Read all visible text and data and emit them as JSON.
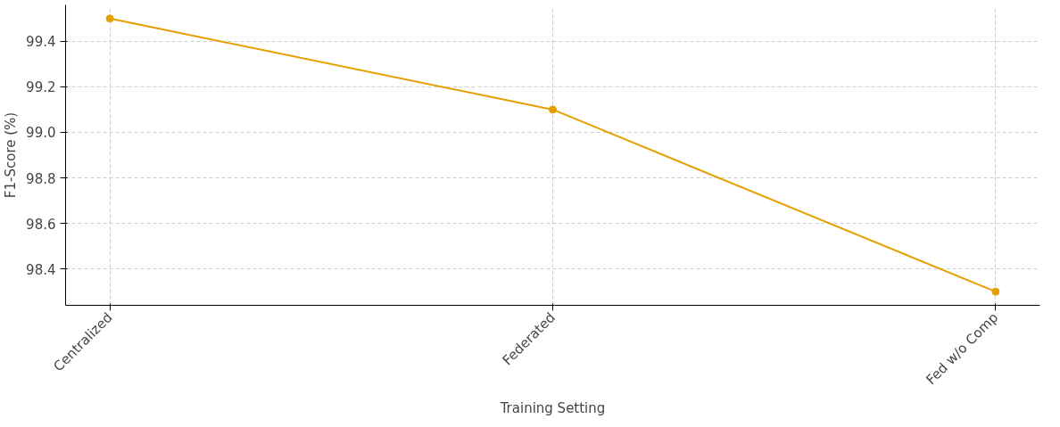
{
  "chart_data": {
    "type": "line",
    "xlabel": "Training Setting",
    "ylabel": "F1-Score (%)",
    "categories": [
      "Centralized",
      "Federated",
      "Fed w/o Comp"
    ],
    "series": [
      {
        "color": "#e69f00",
        "values": [
          99.5,
          99.1,
          98.3
        ]
      }
    ],
    "ylim": [
      98.24,
      99.56
    ],
    "yticks": [
      {
        "value": 98.4,
        "label": "98.4"
      },
      {
        "value": 98.6,
        "label": "98.6"
      },
      {
        "value": 98.8,
        "label": "98.8"
      },
      {
        "value": 99.0,
        "label": "99.0"
      },
      {
        "value": 99.2,
        "label": "99.2"
      },
      {
        "value": 99.4,
        "label": "99.4"
      }
    ],
    "grid": true,
    "marker": "circle",
    "line_style": "solid"
  }
}
